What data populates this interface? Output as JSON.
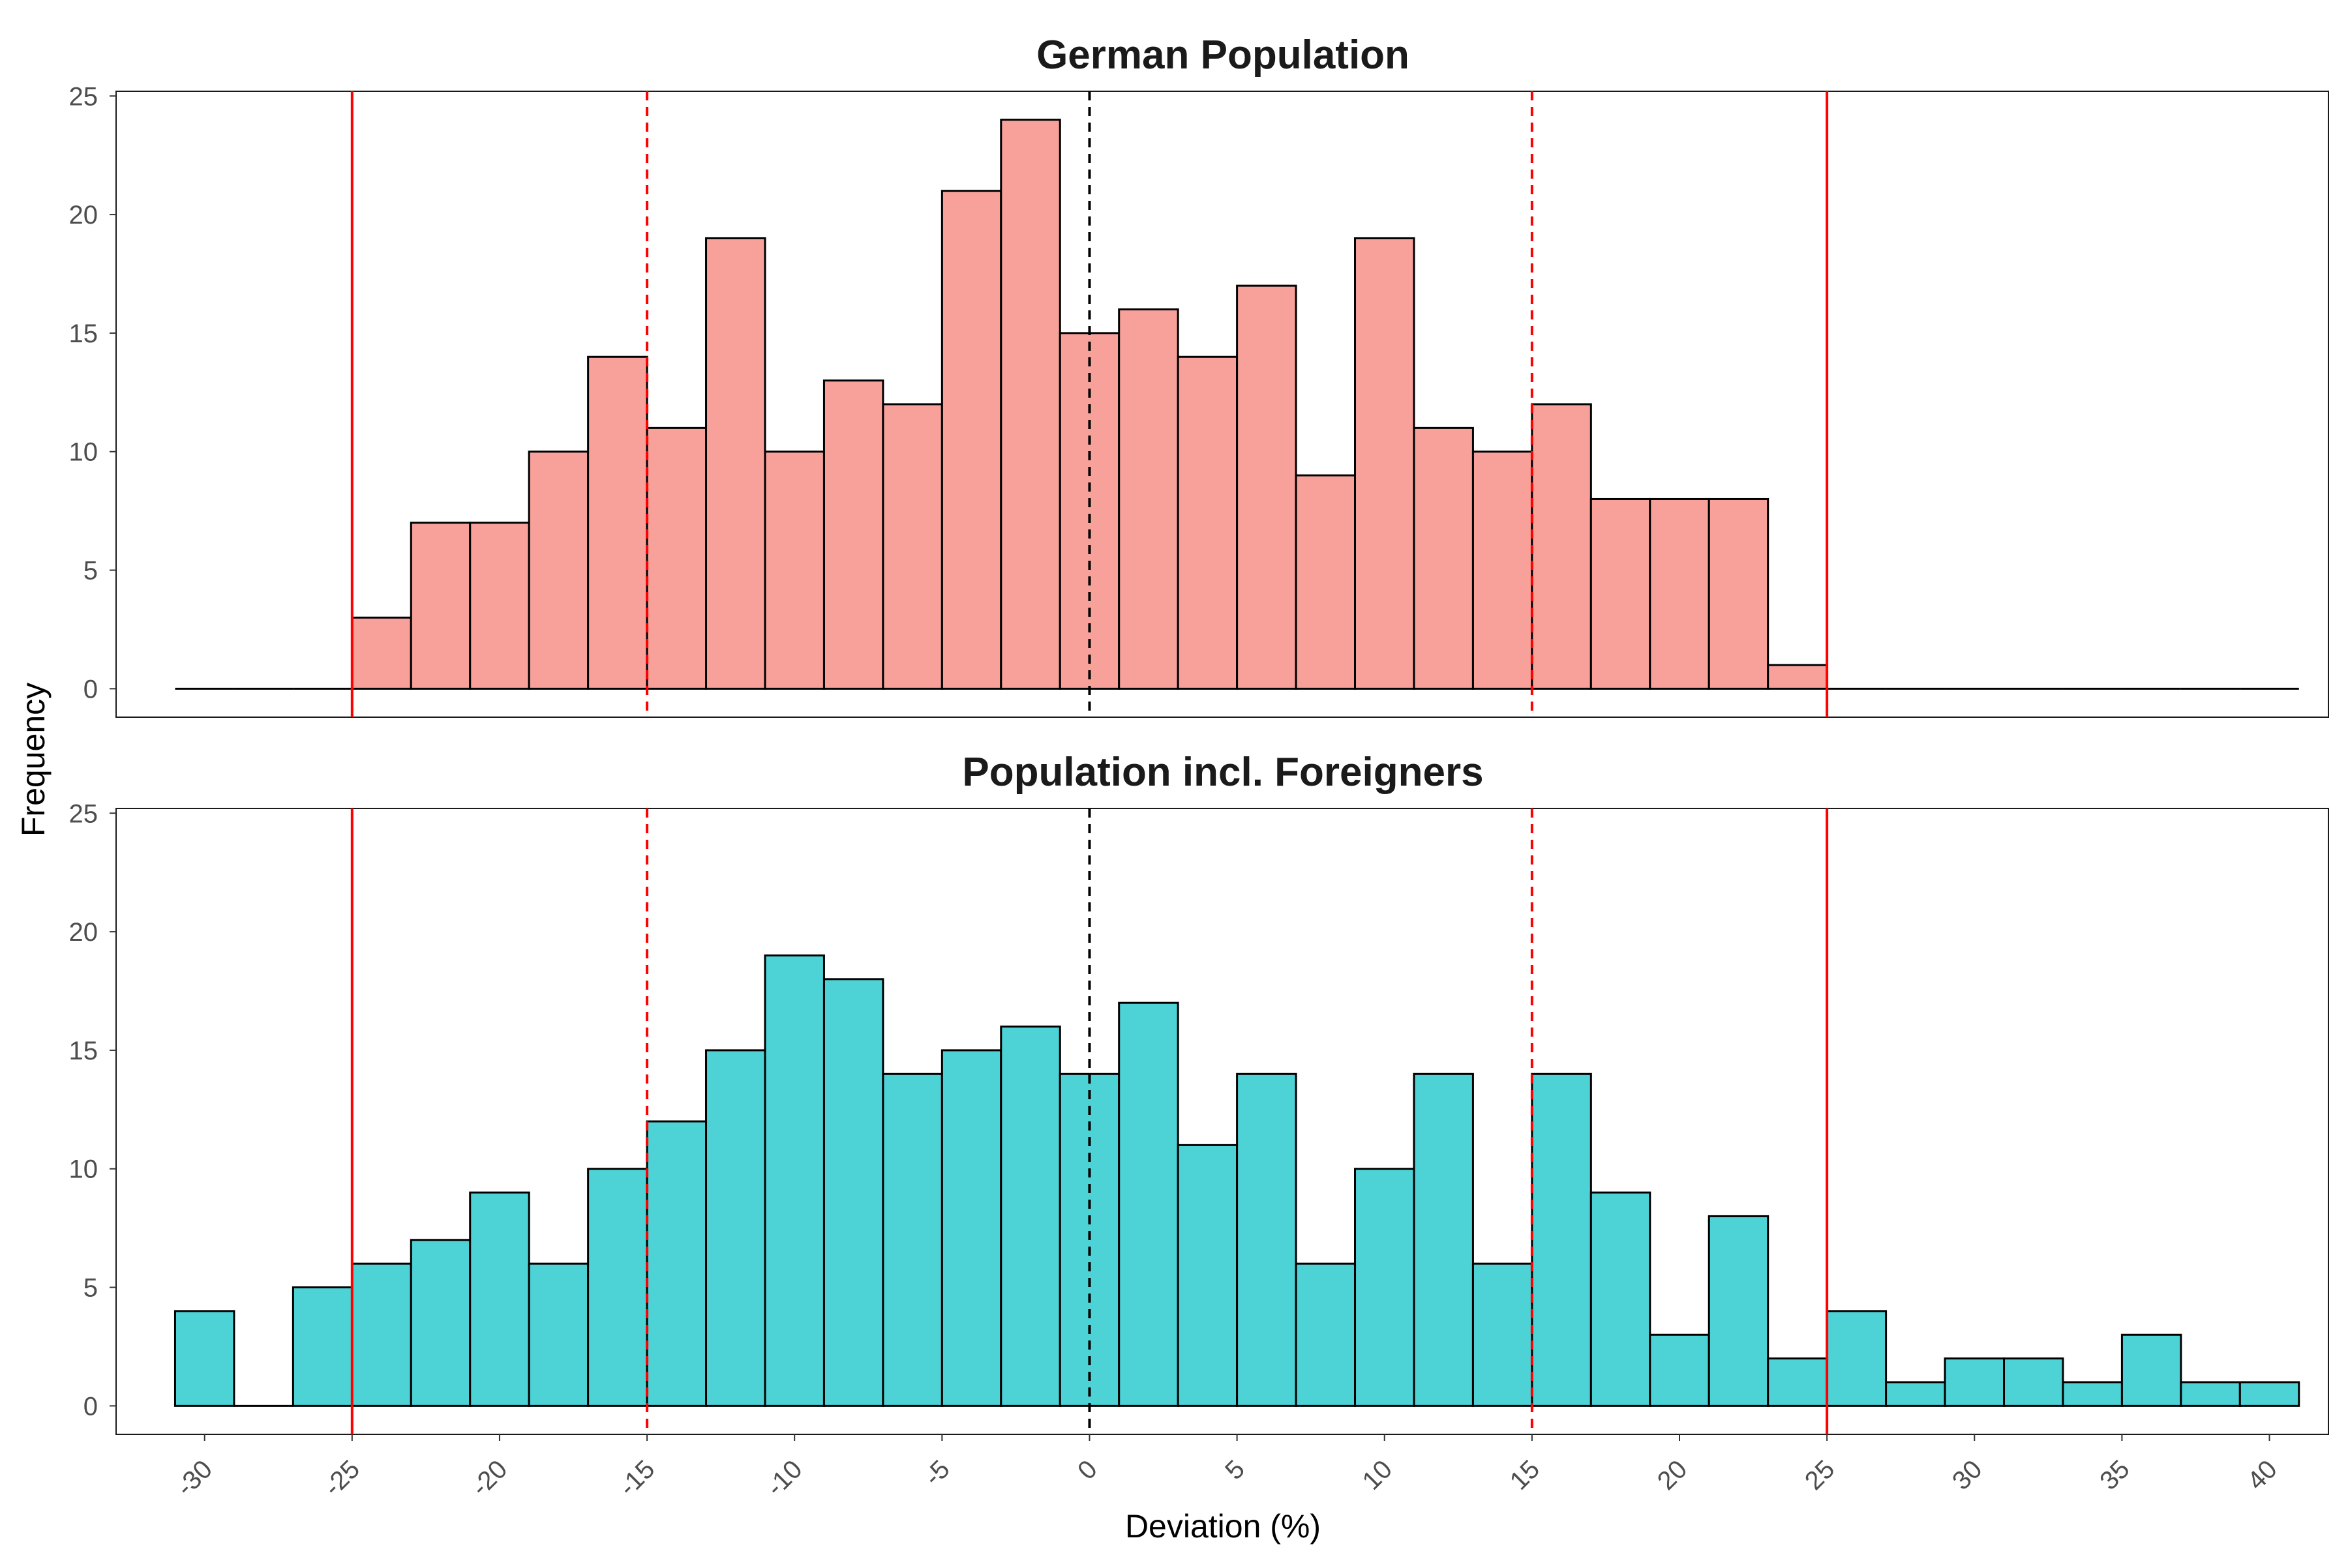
{
  "chart_data": {
    "type": "bar",
    "xlabel": "Deviation (%)",
    "ylabel": "Frequency",
    "xlim": [
      -33,
      42
    ],
    "ylim": [
      -1.2,
      25.2
    ],
    "x_ticks": [
      -30,
      -25,
      -20,
      -15,
      -10,
      -5,
      0,
      5,
      10,
      15,
      20,
      25,
      30,
      35,
      40
    ],
    "y_ticks": [
      0,
      5,
      10,
      15,
      20,
      25
    ],
    "bin_width": 2,
    "bin_centers": [
      -30,
      -28,
      -26,
      -24,
      -22,
      -20,
      -18,
      -16,
      -14,
      -12,
      -10,
      -8,
      -6,
      -4,
      -2,
      0,
      2,
      4,
      6,
      8,
      10,
      12,
      14,
      16,
      18,
      20,
      22,
      24,
      26,
      28,
      30,
      32,
      34,
      36,
      38,
      40
    ],
    "reference_lines": [
      {
        "x": -25,
        "style": "solid",
        "color": "#ff0000"
      },
      {
        "x": -15,
        "style": "dashed",
        "color": "#ff0000"
      },
      {
        "x": 0,
        "style": "dashed",
        "color": "#000000"
      },
      {
        "x": 15,
        "style": "dashed",
        "color": "#ff0000"
      },
      {
        "x": 25,
        "style": "solid",
        "color": "#ff0000"
      }
    ],
    "panels": [
      {
        "title": "German Population",
        "fill": "#f8a19b",
        "values": [
          0,
          0,
          0,
          3,
          7,
          7,
          10,
          14,
          11,
          19,
          10,
          13,
          12,
          21,
          24,
          15,
          16,
          14,
          17,
          9,
          19,
          11,
          10,
          12,
          8,
          8,
          8,
          1,
          0,
          0,
          0,
          0,
          0,
          0,
          0,
          0
        ]
      },
      {
        "title": "Population incl. Foreigners",
        "fill": "#4dd2d6",
        "values": [
          4,
          0,
          5,
          6,
          7,
          9,
          6,
          10,
          12,
          15,
          19,
          18,
          14,
          15,
          16,
          14,
          17,
          11,
          14,
          6,
          10,
          14,
          6,
          14,
          9,
          3,
          8,
          2,
          4,
          1,
          2,
          2,
          1,
          3,
          1,
          1
        ]
      }
    ],
    "grid": false,
    "legend": "none"
  }
}
